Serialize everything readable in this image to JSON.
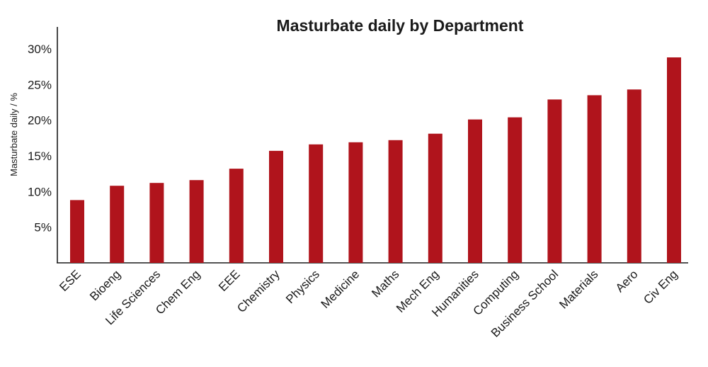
{
  "chart_data": {
    "type": "bar",
    "title": "Masturbate daily by Department",
    "xlabel": "",
    "ylabel": "Masturbate daily / %",
    "ylim": [
      0,
      32
    ],
    "yticks": [
      5,
      10,
      15,
      20,
      25,
      30
    ],
    "ytick_labels": [
      "5%",
      "10%",
      "15%",
      "20%",
      "25%",
      "30%"
    ],
    "categories": [
      "ESE",
      "Bioeng",
      "Life Sciences",
      "Chem Eng",
      "EEE",
      "Chemistry",
      "Physics",
      "Medicine",
      "Maths",
      "Mech Eng",
      "Humanities",
      "Computing",
      "Business School",
      "Materials",
      "Aero",
      "Civ Eng"
    ],
    "values": [
      8.8,
      10.8,
      11.2,
      11.6,
      13.2,
      15.7,
      16.6,
      16.9,
      17.2,
      18.1,
      20.1,
      20.4,
      22.9,
      23.5,
      24.3,
      28.8
    ],
    "bar_color": "#b0141c",
    "grid": false,
    "legend": "none"
  }
}
